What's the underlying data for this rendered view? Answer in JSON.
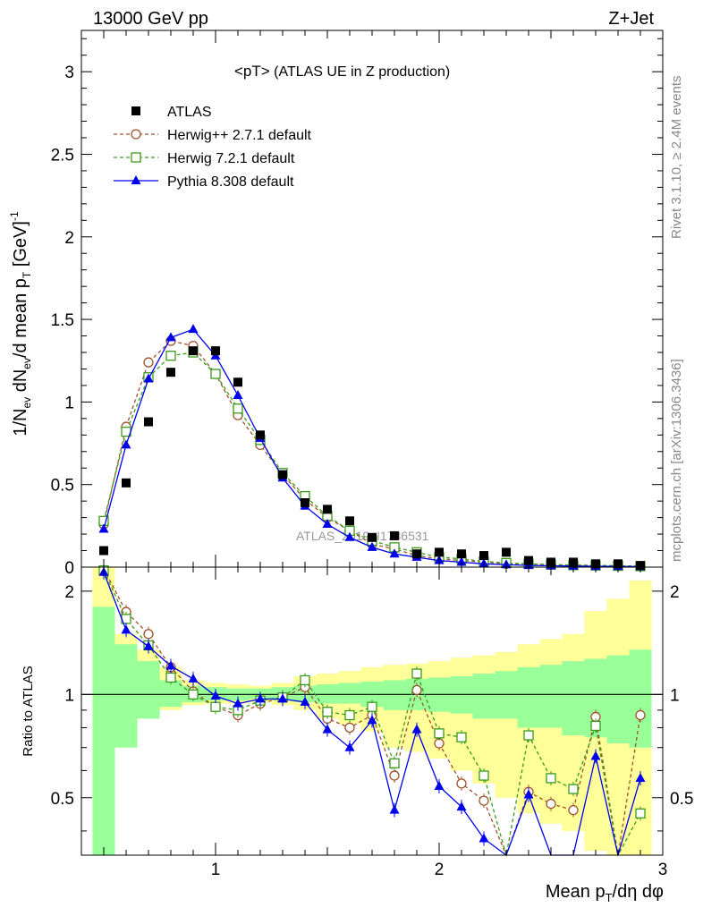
{
  "header": {
    "left": "13000 GeV pp",
    "right": "Z+Jet"
  },
  "side_labels": {
    "rivet": "Rivet 3.1.10, ≥ 2.4M events",
    "mcplots": "mcplots.cern.ch [arXiv:1306.3436]"
  },
  "watermark": "ATLAS_2019_I1736531",
  "colors": {
    "atlas": "#000000",
    "herwigpp": "#a0522d",
    "herwig7": "#3a9a1a",
    "pythia": "#0000ee",
    "band_inner": "#99ff99",
    "band_outer": "#ffff99"
  },
  "chart_data": [
    {
      "type": "scatter",
      "title": "<pT> (ATLAS UE in Z production)",
      "xlabel": "Mean p_T/dη dφ",
      "ylabel": "1/N_ev dN_ev/d mean p_T [GeV]^-1",
      "xlim": [
        0.4,
        3.0
      ],
      "ylim": [
        0,
        3.25
      ],
      "x_ticks": [
        "1",
        "2",
        "3"
      ],
      "y_ticks": [
        "0",
        "0.5",
        "1",
        "1.5",
        "2",
        "2.5",
        "3"
      ],
      "legend_position": "top-left",
      "x": [
        0.5,
        0.6,
        0.7,
        0.8,
        0.9,
        1.0,
        1.1,
        1.2,
        1.3,
        1.4,
        1.5,
        1.6,
        1.7,
        1.8,
        1.9,
        2.0,
        2.1,
        2.2,
        2.3,
        2.4,
        2.5,
        2.6,
        2.7,
        2.8,
        2.9
      ],
      "series": [
        {
          "name": "ATLAS",
          "values": [
            0.1,
            0.51,
            0.88,
            1.18,
            1.31,
            1.31,
            1.12,
            0.8,
            0.56,
            0.39,
            0.35,
            0.28,
            0.18,
            0.19,
            0.08,
            0.09,
            0.08,
            0.07,
            0.09,
            0.04,
            0.03,
            0.03,
            0.02,
            0.02,
            0.01
          ]
        },
        {
          "name": "Herwig++ 2.7.1 default",
          "values": [
            0.26,
            0.85,
            1.24,
            1.37,
            1.34,
            1.17,
            0.92,
            0.74,
            0.56,
            0.41,
            0.3,
            0.22,
            0.14,
            0.11,
            0.07,
            0.05,
            0.04,
            0.03,
            0.02,
            0.02,
            0.015,
            0.012,
            0.01,
            0.008,
            0.006
          ]
        },
        {
          "name": "Herwig 7.2.1 default",
          "values": [
            0.28,
            0.82,
            1.15,
            1.28,
            1.3,
            1.17,
            0.96,
            0.77,
            0.57,
            0.43,
            0.31,
            0.22,
            0.16,
            0.12,
            0.09,
            0.06,
            0.05,
            0.035,
            0.025,
            0.02,
            0.015,
            0.012,
            0.01,
            0.008,
            0.006
          ]
        },
        {
          "name": "Pythia 8.308 default",
          "values": [
            0.23,
            0.74,
            1.14,
            1.39,
            1.44,
            1.28,
            1.04,
            0.78,
            0.54,
            0.37,
            0.26,
            0.18,
            0.12,
            0.08,
            0.06,
            0.04,
            0.03,
            0.02,
            0.015,
            0.01,
            0.008,
            0.006,
            0.005,
            0.004,
            0.003
          ]
        }
      ]
    },
    {
      "type": "line",
      "ylabel": "Ratio to ATLAS",
      "xlim": [
        0.4,
        3.0
      ],
      "ylim": [
        0.34,
        2.35
      ],
      "y_ticks": [
        "0.5",
        "1",
        "2"
      ],
      "x": [
        0.5,
        0.6,
        0.7,
        0.8,
        0.9,
        1.0,
        1.1,
        1.2,
        1.3,
        1.4,
        1.5,
        1.6,
        1.7,
        1.8,
        1.9,
        2.0,
        2.1,
        2.2,
        2.3,
        2.4,
        2.5,
        2.6,
        2.7,
        2.8,
        2.9
      ],
      "band_inner": [
        [
          0.3,
          1.8
        ],
        [
          0.7,
          1.4
        ],
        [
          0.85,
          1.25
        ],
        [
          0.92,
          1.1
        ],
        [
          0.95,
          1.06
        ],
        [
          0.96,
          1.05
        ],
        [
          0.96,
          1.04
        ],
        [
          0.97,
          1.04
        ],
        [
          0.96,
          1.05
        ],
        [
          0.95,
          1.06
        ],
        [
          0.94,
          1.07
        ],
        [
          0.94,
          1.08
        ],
        [
          0.92,
          1.09
        ],
        [
          0.9,
          1.1
        ],
        [
          0.9,
          1.11
        ],
        [
          0.89,
          1.12
        ],
        [
          0.88,
          1.13
        ],
        [
          0.85,
          1.15
        ],
        [
          0.85,
          1.17
        ],
        [
          0.8,
          1.2
        ],
        [
          0.8,
          1.22
        ],
        [
          0.76,
          1.25
        ],
        [
          0.75,
          1.27
        ],
        [
          0.72,
          1.3
        ],
        [
          0.7,
          1.35
        ]
      ],
      "band_outer": [
        [
          0.3,
          2.4
        ],
        [
          0.75,
          1.5
        ],
        [
          0.85,
          1.35
        ],
        [
          0.9,
          1.2
        ],
        [
          0.93,
          1.1
        ],
        [
          0.94,
          1.08
        ],
        [
          0.94,
          1.07
        ],
        [
          0.95,
          1.06
        ],
        [
          0.93,
          1.08
        ],
        [
          0.9,
          1.13
        ],
        [
          0.85,
          1.15
        ],
        [
          0.82,
          1.17
        ],
        [
          0.78,
          1.2
        ],
        [
          0.7,
          1.22
        ],
        [
          0.68,
          1.23
        ],
        [
          0.65,
          1.25
        ],
        [
          0.6,
          1.28
        ],
        [
          0.55,
          1.3
        ],
        [
          0.5,
          1.33
        ],
        [
          0.45,
          1.4
        ],
        [
          0.42,
          1.45
        ],
        [
          0.4,
          1.5
        ],
        [
          0.35,
          1.75
        ],
        [
          0.3,
          1.9
        ],
        [
          0.3,
          2.15
        ]
      ],
      "series": [
        {
          "name": "Herwig++ 2.7.1 default",
          "values": [
            2.33,
            1.74,
            1.5,
            1.2,
            1.02,
            0.92,
            0.87,
            0.94,
            0.98,
            1.05,
            0.85,
            0.8,
            0.87,
            0.58,
            1.03,
            0.72,
            0.55,
            0.49,
            0.2,
            0.52,
            0.48,
            0.46,
            0.86,
            0.2,
            0.87
          ]
        },
        {
          "name": "Herwig 7.2.1 default",
          "values": [
            2.3,
            1.66,
            1.39,
            1.12,
            1.0,
            0.92,
            0.9,
            0.96,
            0.98,
            1.1,
            0.89,
            0.87,
            0.92,
            0.63,
            1.15,
            0.77,
            0.75,
            0.58,
            0.2,
            0.76,
            0.57,
            0.53,
            0.81,
            0.2,
            0.45
          ]
        },
        {
          "name": "Pythia 8.308 default",
          "values": [
            2.27,
            1.54,
            1.38,
            1.21,
            1.11,
            0.99,
            0.94,
            0.97,
            0.97,
            0.95,
            0.79,
            0.7,
            0.84,
            0.46,
            0.79,
            0.54,
            0.47,
            0.38,
            0.2,
            0.51,
            0.2,
            0.2,
            0.66,
            0.2,
            0.57
          ]
        }
      ]
    }
  ]
}
